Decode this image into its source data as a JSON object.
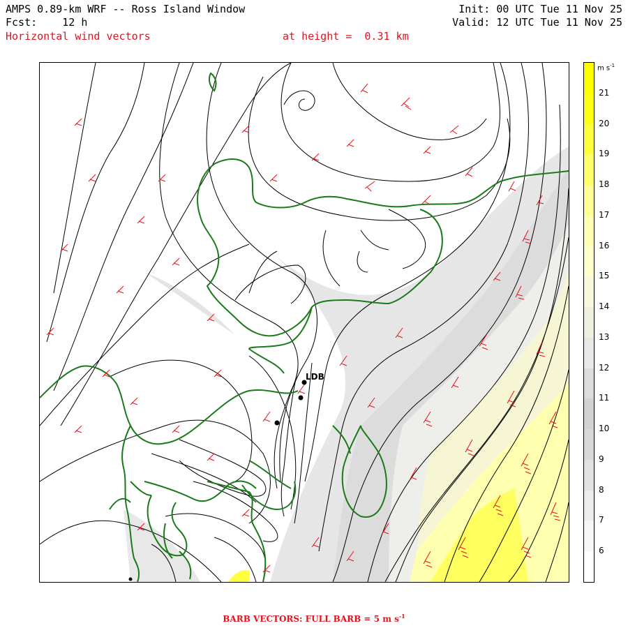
{
  "header": {
    "line1_left": "AMPS 0.89-km WRF -- Ross Island Window",
    "line2_left": "Fcst:    12 h",
    "line3_left": "Horizontal wind vectors",
    "line3_mid": "at height =  0.31 km",
    "line1_right": "Init: 00 UTC Tue 11 Nov 25",
    "line2_right": "Valid: 12 UTC Tue 11 Nov 25"
  },
  "colorbar": {
    "unit": "m s",
    "unit_exp": "-1",
    "labels": [
      "21",
      "20",
      "19",
      "18",
      "17",
      "16",
      "15",
      "14",
      "13",
      "12",
      "11",
      "10",
      "9",
      "8",
      "7",
      "6"
    ],
    "colors": {
      "21": "#ffff00",
      "20": "#ffff14",
      "19": "#ffff3c",
      "18": "#ffff6a",
      "17": "#ffff96",
      "16": "#ffffb4",
      "15": "#ffffcc",
      "14": "#f8f8dc",
      "13": "#f0f0e0",
      "12": "#e8e8e6",
      "11": "#dcdcdc",
      "10": "#d2d2d2",
      "9": "#d8d8d8",
      "8": "#e2e2e2",
      "7": "#ececec",
      "6": "#f6f6f6",
      "5": "#ffffff"
    }
  },
  "station": {
    "name": "LDB"
  },
  "footer": {
    "text": "BARB VECTORS:  FULL BARB = 5 m s",
    "exp": "-1"
  },
  "style": {
    "coast_color": "#1a7a1a",
    "barb_color": "#e0141e",
    "stream_color": "#000000"
  }
}
